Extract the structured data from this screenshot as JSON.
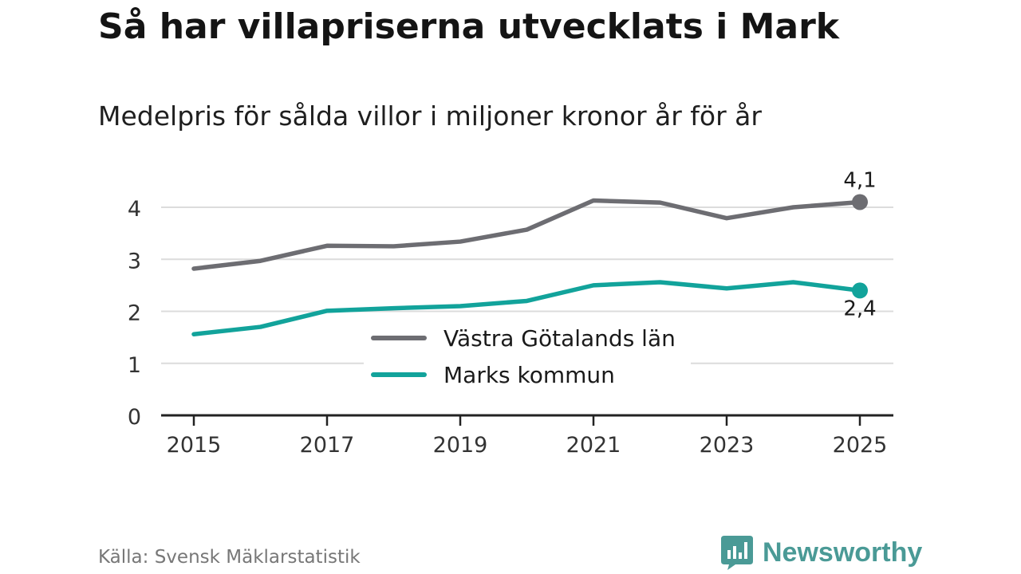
{
  "title": "Så har villapriserna utvecklats i Mark",
  "subtitle": "Medelpris för sålda villor i miljoner kronor år för år",
  "source": "Källa: Svensk Mäklarstatistik",
  "brand": {
    "name": "Newsworthy",
    "icon": "newsworthy-logo-icon",
    "color": "#4a9a96"
  },
  "chart_data": {
    "type": "line",
    "title": "Medelpris för sålda villor i miljoner kronor år för år",
    "xlabel": "",
    "ylabel": "",
    "x": [
      2015,
      2016,
      2017,
      2018,
      2019,
      2020,
      2021,
      2022,
      2023,
      2024,
      2025
    ],
    "xticks": [
      "2015",
      "2017",
      "2019",
      "2021",
      "2023",
      "2025"
    ],
    "yticks": [
      "0",
      "1",
      "2",
      "3",
      "4"
    ],
    "ylim": [
      0,
      4.3
    ],
    "xlim": [
      2014.5,
      2025.5
    ],
    "grid": true,
    "legend_position": "center",
    "series": [
      {
        "name": "Västra Götalands län",
        "color": "#6d6d72",
        "values": [
          2.82,
          2.97,
          3.26,
          3.25,
          3.34,
          3.57,
          4.13,
          4.09,
          3.79,
          4.0,
          4.1
        ],
        "end_label": "4,1"
      },
      {
        "name": "Marks kommun",
        "color": "#12a39b",
        "values": [
          1.56,
          1.7,
          2.01,
          2.06,
          2.1,
          2.2,
          2.5,
          2.56,
          2.44,
          2.56,
          2.4
        ],
        "end_label": "2,4"
      }
    ]
  }
}
